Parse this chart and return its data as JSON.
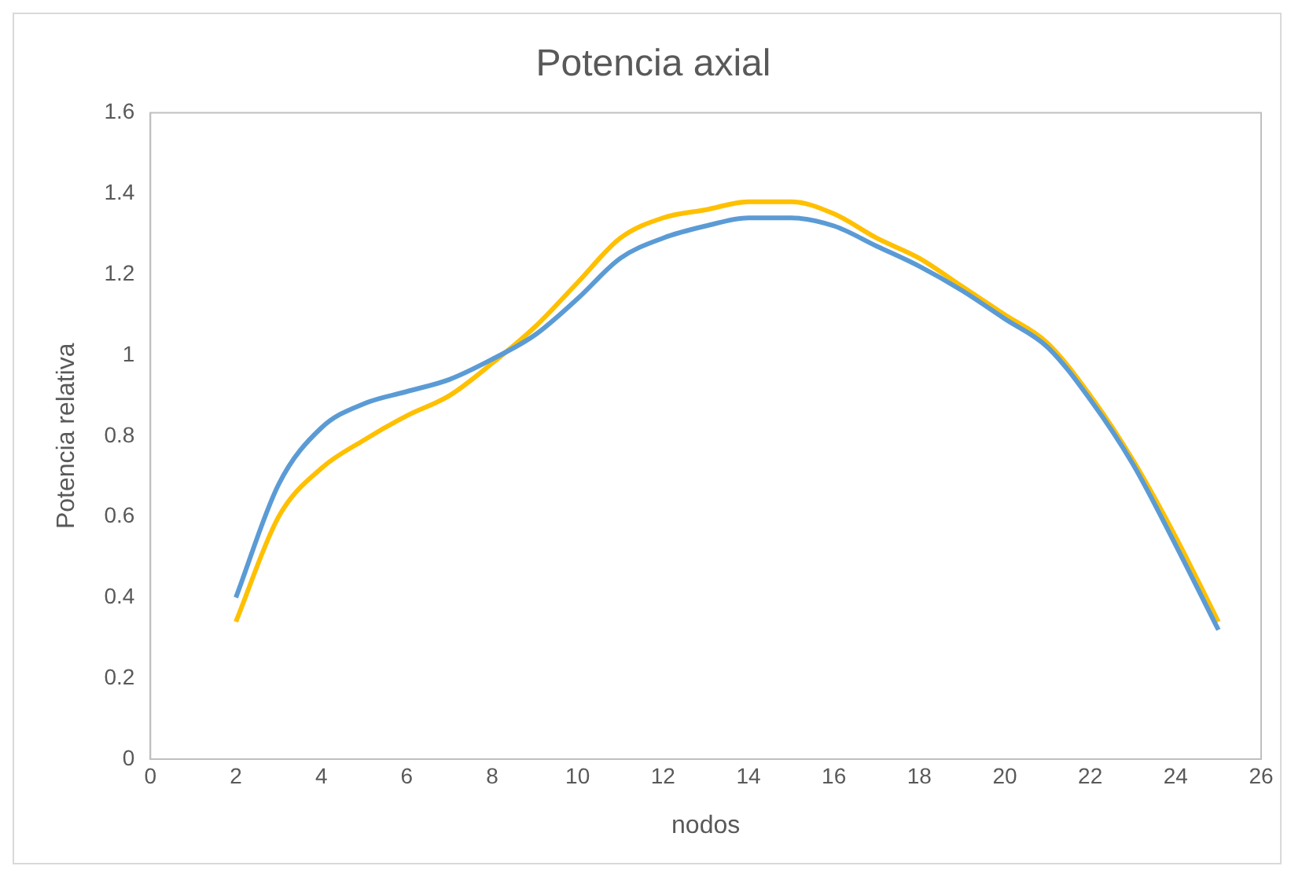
{
  "chart_data": {
    "type": "line",
    "title": "Potencia axial",
    "xlabel": "nodos",
    "ylabel": "Potencia relativa",
    "x": [
      2,
      3,
      4,
      5,
      6,
      7,
      8,
      9,
      10,
      11,
      12,
      13,
      14,
      15,
      16,
      17,
      18,
      19,
      20,
      21,
      22,
      23,
      24,
      25
    ],
    "xlim": [
      0,
      26
    ],
    "xticks": [
      0,
      2,
      4,
      6,
      8,
      10,
      12,
      14,
      16,
      18,
      20,
      22,
      24,
      26
    ],
    "ylim": [
      0,
      1.6
    ],
    "yticks": [
      0,
      0.2,
      0.4,
      0.6,
      0.8,
      1,
      1.2,
      1.4,
      1.6
    ],
    "grid": false,
    "marker": "none",
    "line_style": "solid",
    "series": [
      {
        "color": "#5b9bd5",
        "values": [
          0.4,
          0.68,
          0.82,
          0.88,
          0.91,
          0.94,
          0.99,
          1.05,
          1.14,
          1.24,
          1.29,
          1.32,
          1.34,
          1.34,
          1.32,
          1.27,
          1.22,
          1.16,
          1.09,
          1.02,
          0.89,
          0.73,
          0.53,
          0.32
        ]
      },
      {
        "color": "#ffc000",
        "values": [
          0.34,
          0.6,
          0.72,
          0.79,
          0.85,
          0.9,
          0.98,
          1.07,
          1.18,
          1.29,
          1.34,
          1.36,
          1.38,
          1.38,
          1.35,
          1.29,
          1.24,
          1.17,
          1.1,
          1.03,
          0.9,
          0.74,
          0.55,
          0.34
        ]
      }
    ]
  }
}
